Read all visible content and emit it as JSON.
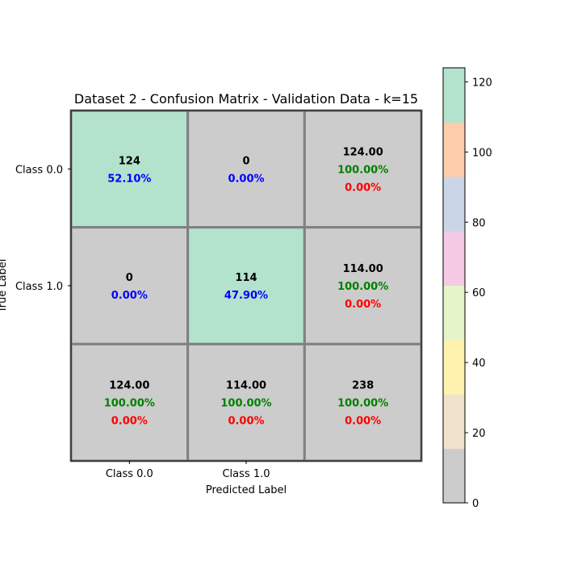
{
  "chart_data": {
    "type": "heatmap",
    "title": "Dataset 2 - Confusion Matrix - Validation Data - k=15",
    "xlabel": "Predicted Label",
    "ylabel": "True Label",
    "x_tick_labels": [
      "Class 0.0",
      "Class 1.0",
      ""
    ],
    "y_tick_labels": [
      "Class 0.0",
      "Class 1.0",
      ""
    ],
    "matrix": [
      [
        124,
        0,
        124
      ],
      [
        0,
        114,
        114
      ],
      [
        124,
        114,
        238
      ]
    ],
    "cells": [
      [
        {
          "lines": [
            {
              "text": "124",
              "color": "#000000"
            },
            {
              "text": "52.10%",
              "color": "#0000ff"
            }
          ],
          "fill": "#b3e2cd"
        },
        {
          "lines": [
            {
              "text": "0",
              "color": "#000000"
            },
            {
              "text": "0.00%",
              "color": "#0000ff"
            }
          ],
          "fill": "#cccccc"
        },
        {
          "lines": [
            {
              "text": "124.00",
              "color": "#000000"
            },
            {
              "text": "100.00%",
              "color": "#008000"
            },
            {
              "text": "0.00%",
              "color": "#ff0000"
            }
          ],
          "fill": "#cccccc"
        }
      ],
      [
        {
          "lines": [
            {
              "text": "0",
              "color": "#000000"
            },
            {
              "text": "0.00%",
              "color": "#0000ff"
            }
          ],
          "fill": "#cccccc"
        },
        {
          "lines": [
            {
              "text": "114",
              "color": "#000000"
            },
            {
              "text": "47.90%",
              "color": "#0000ff"
            }
          ],
          "fill": "#b3e2cd"
        },
        {
          "lines": [
            {
              "text": "114.00",
              "color": "#000000"
            },
            {
              "text": "100.00%",
              "color": "#008000"
            },
            {
              "text": "0.00%",
              "color": "#ff0000"
            }
          ],
          "fill": "#cccccc"
        }
      ],
      [
        {
          "lines": [
            {
              "text": "124.00",
              "color": "#000000"
            },
            {
              "text": "100.00%",
              "color": "#008000"
            },
            {
              "text": "0.00%",
              "color": "#ff0000"
            }
          ],
          "fill": "#cccccc"
        },
        {
          "lines": [
            {
              "text": "114.00",
              "color": "#000000"
            },
            {
              "text": "100.00%",
              "color": "#008000"
            },
            {
              "text": "0.00%",
              "color": "#ff0000"
            }
          ],
          "fill": "#cccccc"
        },
        {
          "lines": [
            {
              "text": "238",
              "color": "#000000"
            },
            {
              "text": "100.00%",
              "color": "#008000"
            },
            {
              "text": "0.00%",
              "color": "#ff0000"
            }
          ],
          "fill": "#cccccc"
        }
      ]
    ],
    "colorbar": {
      "range": [
        0,
        124
      ],
      "ticks": [
        0,
        20,
        40,
        60,
        80,
        100,
        120
      ],
      "colors": [
        "#cccccc",
        "#f1e2cc",
        "#fff2ae",
        "#e6f5c9",
        "#f4cae4",
        "#cbd5e8",
        "#fdcdac",
        "#b3e2cd"
      ]
    },
    "grid_color": "#808080"
  }
}
